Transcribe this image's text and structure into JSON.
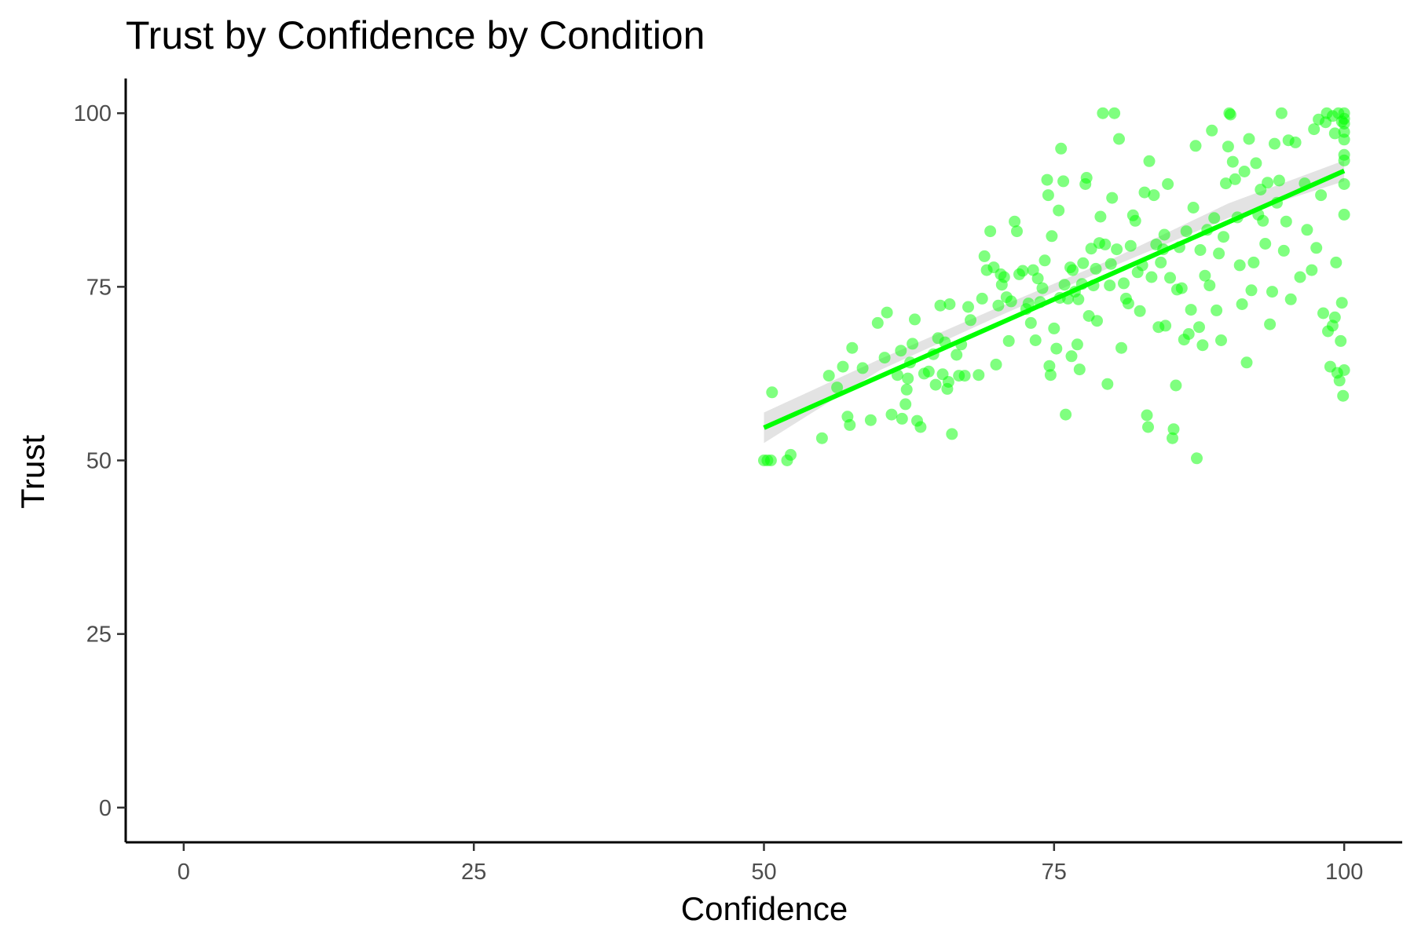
{
  "chart_data": {
    "type": "scatter",
    "title": "Trust by Confidence by Condition",
    "xlabel": "Confidence",
    "ylabel": "Trust",
    "xlim": [
      -5,
      105
    ],
    "ylim": [
      -5,
      105
    ],
    "x_ticks": [
      0,
      25,
      50,
      75,
      100
    ],
    "y_ticks": [
      0,
      25,
      50,
      75,
      100
    ],
    "x_tick_labels": [
      "0",
      "25",
      "50",
      "75",
      "100"
    ],
    "y_tick_labels": [
      "0",
      "25",
      "50",
      "75",
      "100"
    ],
    "grid": false,
    "legend": "none",
    "colors": {
      "points": "#00ff00",
      "trend_line": "#00ff00",
      "confidence_band": "#d9d9d9"
    },
    "trend_line": {
      "x": [
        50,
        100
      ],
      "y": [
        54.7,
        91.7
      ]
    },
    "confidence_band": {
      "x": [
        50,
        60,
        70,
        80,
        90,
        100
      ],
      "lower": [
        52.5,
        63.0,
        70.6,
        77.9,
        84.9,
        90.2
      ],
      "upper": [
        56.9,
        64.6,
        71.9,
        79.0,
        87.0,
        93.2
      ]
    },
    "points": [
      [
        50,
        50
      ],
      [
        50.3,
        50
      ],
      [
        50.6,
        50
      ],
      [
        52,
        50
      ],
      [
        52.3,
        50.8
      ],
      [
        50.7,
        59.8
      ],
      [
        55,
        53.2
      ],
      [
        55.6,
        62.2
      ],
      [
        56.3,
        60.5
      ],
      [
        56.8,
        63.5
      ],
      [
        57.2,
        56.3
      ],
      [
        57.4,
        55.1
      ],
      [
        57.6,
        66.2
      ],
      [
        58.5,
        63.3
      ],
      [
        59.2,
        55.8
      ],
      [
        59.8,
        69.8
      ],
      [
        60.4,
        64.8
      ],
      [
        60.6,
        71.3
      ],
      [
        61,
        56.6
      ],
      [
        61.5,
        62.3
      ],
      [
        61.8,
        65.8
      ],
      [
        61.9,
        56
      ],
      [
        62.2,
        58.1
      ],
      [
        62.3,
        60.2
      ],
      [
        62.4,
        61.8
      ],
      [
        62.6,
        64.1
      ],
      [
        62.8,
        66.8
      ],
      [
        63,
        70.3
      ],
      [
        63.2,
        55.7
      ],
      [
        63.5,
        54.8
      ],
      [
        63.8,
        62.5
      ],
      [
        64.2,
        62.8
      ],
      [
        64.6,
        65.3
      ],
      [
        64.8,
        60.9
      ],
      [
        65,
        67.6
      ],
      [
        65.2,
        72.3
      ],
      [
        65.4,
        62.4
      ],
      [
        65.6,
        67
      ],
      [
        65.8,
        60.3
      ],
      [
        65.9,
        61.3
      ],
      [
        66,
        72.5
      ],
      [
        66.2,
        53.8
      ],
      [
        66.6,
        65.2
      ],
      [
        66.8,
        62.2
      ],
      [
        67,
        66.7
      ],
      [
        67.3,
        62.2
      ],
      [
        67.6,
        72.1
      ],
      [
        67.8,
        70.2
      ],
      [
        68.5,
        62.3
      ],
      [
        68.8,
        73.3
      ],
      [
        69,
        79.4
      ],
      [
        69.2,
        77.4
      ],
      [
        69.5,
        83
      ],
      [
        69.8,
        77.8
      ],
      [
        70,
        63.8
      ],
      [
        70.2,
        72.3
      ],
      [
        70.4,
        76.8
      ],
      [
        70.5,
        75.3
      ],
      [
        70.7,
        76.4
      ],
      [
        70.9,
        73.5
      ],
      [
        71.1,
        67.2
      ],
      [
        71.3,
        72.9
      ],
      [
        71.6,
        84.4
      ],
      [
        71.8,
        83
      ],
      [
        72,
        76.8
      ],
      [
        72.3,
        77.3
      ],
      [
        72.6,
        71.8
      ],
      [
        72.8,
        72.6
      ],
      [
        73,
        69.8
      ],
      [
        73.2,
        77.4
      ],
      [
        73.4,
        67.3
      ],
      [
        73.6,
        76.2
      ],
      [
        73.8,
        72.8
      ],
      [
        74,
        74.8
      ],
      [
        74.2,
        78.8
      ],
      [
        74.4,
        90.4
      ],
      [
        74.5,
        88.2
      ],
      [
        74.6,
        63.6
      ],
      [
        74.7,
        62.3
      ],
      [
        74.8,
        82.3
      ],
      [
        75,
        69
      ],
      [
        75.2,
        66.1
      ],
      [
        75.4,
        86
      ],
      [
        75.5,
        73.4
      ],
      [
        75.6,
        94.9
      ],
      [
        75.8,
        90.2
      ],
      [
        75.9,
        75.3
      ],
      [
        76,
        56.6
      ],
      [
        76.2,
        73.3
      ],
      [
        76.4,
        77.8
      ],
      [
        76.5,
        65
      ],
      [
        76.6,
        77.4
      ],
      [
        76.8,
        74.3
      ],
      [
        77,
        66.7
      ],
      [
        77.1,
        73.2
      ],
      [
        77.2,
        63.1
      ],
      [
        77.4,
        75.4
      ],
      [
        77.5,
        78.4
      ],
      [
        77.7,
        89.8
      ],
      [
        77.8,
        90.7
      ],
      [
        78,
        70.8
      ],
      [
        78.2,
        80.5
      ],
      [
        78.4,
        75.2
      ],
      [
        78.6,
        77.6
      ],
      [
        78.7,
        70.1
      ],
      [
        78.9,
        81.3
      ],
      [
        79,
        85.1
      ],
      [
        79.2,
        100
      ],
      [
        79.4,
        81.1
      ],
      [
        79.6,
        61
      ],
      [
        79.8,
        75.2
      ],
      [
        79.9,
        78.3
      ],
      [
        80,
        87.8
      ],
      [
        80.2,
        100
      ],
      [
        80.4,
        80.4
      ],
      [
        80.6,
        96.3
      ],
      [
        80.8,
        66.2
      ],
      [
        81,
        75.5
      ],
      [
        81.2,
        73.3
      ],
      [
        81.4,
        72.6
      ],
      [
        81.6,
        80.9
      ],
      [
        81.8,
        85.3
      ],
      [
        82,
        84.5
      ],
      [
        82.2,
        77.1
      ],
      [
        82.4,
        71.5
      ],
      [
        82.6,
        78.1
      ],
      [
        82.8,
        88.6
      ],
      [
        83,
        56.5
      ],
      [
        83.1,
        54.8
      ],
      [
        83.2,
        93.1
      ],
      [
        83.4,
        76.4
      ],
      [
        83.6,
        88.2
      ],
      [
        83.8,
        81.1
      ],
      [
        84,
        69.2
      ],
      [
        84.2,
        78.5
      ],
      [
        84.4,
        80.4
      ],
      [
        84.5,
        82.5
      ],
      [
        84.6,
        69.4
      ],
      [
        84.8,
        89.8
      ],
      [
        85,
        76.3
      ],
      [
        85.2,
        53.2
      ],
      [
        85.3,
        54.5
      ],
      [
        85.5,
        60.8
      ],
      [
        85.6,
        74.6
      ],
      [
        85.8,
        80.7
      ],
      [
        86,
        74.8
      ],
      [
        86.2,
        67.4
      ],
      [
        86.4,
        83
      ],
      [
        86.6,
        68.2
      ],
      [
        86.8,
        71.7
      ],
      [
        87,
        86.4
      ],
      [
        87.2,
        95.3
      ],
      [
        87.3,
        50.3
      ],
      [
        87.5,
        69.2
      ],
      [
        87.6,
        80.3
      ],
      [
        87.8,
        66.6
      ],
      [
        88,
        76.6
      ],
      [
        88.2,
        83.2
      ],
      [
        88.4,
        75.2
      ],
      [
        88.6,
        97.5
      ],
      [
        88.8,
        84.9
      ],
      [
        89,
        71.6
      ],
      [
        89.2,
        79.8
      ],
      [
        89.4,
        67.3
      ],
      [
        89.6,
        82.2
      ],
      [
        89.8,
        89.9
      ],
      [
        90,
        95.2
      ],
      [
        90.1,
        100
      ],
      [
        90.2,
        99.8
      ],
      [
        90.4,
        93
      ],
      [
        90.6,
        90.5
      ],
      [
        90.8,
        85
      ],
      [
        91,
        78.1
      ],
      [
        91.2,
        72.5
      ],
      [
        91.4,
        91.6
      ],
      [
        91.6,
        64.1
      ],
      [
        91.8,
        96.3
      ],
      [
        92,
        74.5
      ],
      [
        92.2,
        78.5
      ],
      [
        92.4,
        92.8
      ],
      [
        92.6,
        85.4
      ],
      [
        92.8,
        89
      ],
      [
        93,
        84.5
      ],
      [
        93.2,
        81.2
      ],
      [
        93.4,
        90
      ],
      [
        93.6,
        69.6
      ],
      [
        93.8,
        74.3
      ],
      [
        94,
        95.6
      ],
      [
        94.2,
        87.1
      ],
      [
        94.4,
        90.3
      ],
      [
        94.6,
        100
      ],
      [
        94.8,
        80.2
      ],
      [
        95,
        84.4
      ],
      [
        95.2,
        96.1
      ],
      [
        95.4,
        73.2
      ],
      [
        95.8,
        95.8
      ],
      [
        96.2,
        76.4
      ],
      [
        96.6,
        89.9
      ],
      [
        96.8,
        83.2
      ],
      [
        97.2,
        77.4
      ],
      [
        97.4,
        97.7
      ],
      [
        97.6,
        80.6
      ],
      [
        97.8,
        99.1
      ],
      [
        98,
        88.2
      ],
      [
        98.2,
        71.2
      ],
      [
        98.4,
        98.7
      ],
      [
        98.6,
        68.6
      ],
      [
        98.8,
        63.5
      ],
      [
        99,
        69.4
      ],
      [
        99.2,
        70.6
      ],
      [
        99.3,
        78.5
      ],
      [
        99.4,
        62.6
      ],
      [
        99.6,
        61.5
      ],
      [
        99.7,
        67.2
      ],
      [
        99.8,
        72.7
      ],
      [
        99.9,
        59.3
      ],
      [
        100,
        63
      ],
      [
        100,
        85.4
      ],
      [
        100,
        89.8
      ],
      [
        100,
        93.2
      ],
      [
        100,
        94
      ],
      [
        100,
        96.2
      ],
      [
        100,
        97.3
      ],
      [
        100,
        98.5
      ],
      [
        100,
        99.2
      ],
      [
        100,
        100
      ],
      [
        99.5,
        100
      ],
      [
        99,
        99.6
      ],
      [
        98.5,
        100
      ],
      [
        99.8,
        98.8
      ],
      [
        99.2,
        97.1
      ]
    ]
  }
}
